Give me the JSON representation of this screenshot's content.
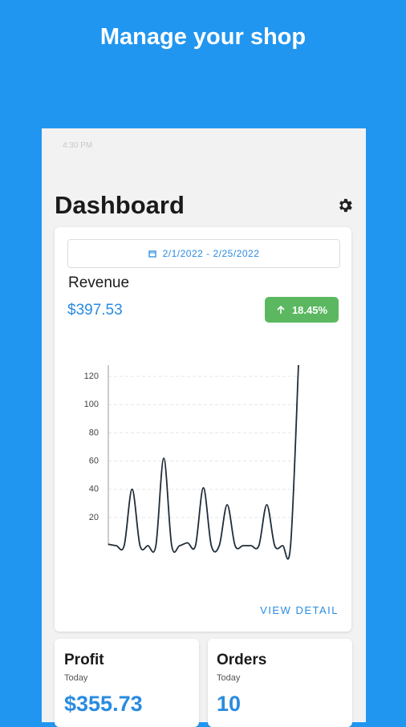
{
  "header": {
    "title": "Manage your shop"
  },
  "status_bar": {
    "time": "4:30 PM"
  },
  "dashboard": {
    "title": "Dashboard",
    "date_range": "2/1/2022 - 2/25/2022",
    "metric": "Revenue",
    "amount": "$397.53",
    "change": "18.45%",
    "link": "VIEW DETAIL"
  },
  "chart_data": {
    "type": "line",
    "color": "#1f2d3a",
    "values": [
      1,
      0,
      0,
      40,
      0,
      0,
      0,
      62,
      0,
      0,
      2,
      0,
      41,
      0,
      0,
      29,
      0,
      0,
      0,
      0,
      29,
      0,
      0,
      0,
      128
    ],
    "ylim": [
      0,
      128
    ],
    "yticks": [
      20,
      40,
      60,
      80,
      100,
      120
    ],
    "grid": true
  },
  "cards": [
    {
      "title": "Profit",
      "subtitle": "Today",
      "value": "$355.73"
    },
    {
      "title": "Orders",
      "subtitle": "Today",
      "value": "10"
    }
  ]
}
